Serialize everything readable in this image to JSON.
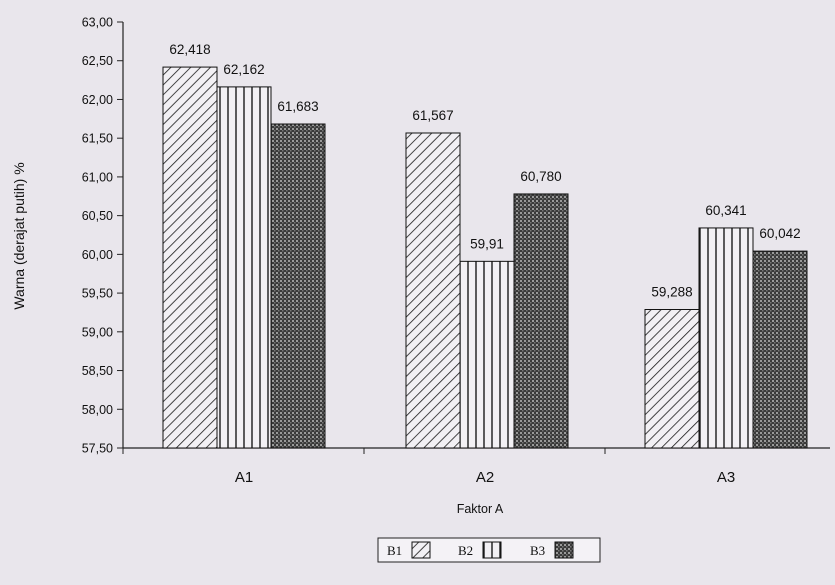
{
  "chart_data": {
    "type": "bar",
    "title": "",
    "xlabel": "Faktor A",
    "ylabel": "Warna (derajat putih) %",
    "ylim": [
      57.5,
      63.0
    ],
    "yticks": [
      "63,00",
      "62,50",
      "62,00",
      "61,50",
      "61,00",
      "60,50",
      "60,00",
      "59,50",
      "59,00",
      "58,50",
      "58,00",
      "57,50"
    ],
    "ytick_values": [
      63.0,
      62.5,
      62.0,
      61.5,
      61.0,
      60.5,
      60.0,
      59.5,
      59.0,
      58.5,
      58.0,
      57.5
    ],
    "categories": [
      "A1",
      "A2",
      "A3"
    ],
    "series": [
      {
        "name": "B1",
        "values": [
          62.418,
          61.567,
          59.288
        ],
        "labels": [
          "62,418",
          "61,567",
          "59,288"
        ],
        "pattern": "diagonal"
      },
      {
        "name": "B2",
        "values": [
          62.162,
          59.91,
          60.341
        ],
        "labels": [
          "62,162",
          "59,91",
          "60,341"
        ],
        "pattern": "vertical"
      },
      {
        "name": "B3",
        "values": [
          61.683,
          60.78,
          60.042
        ],
        "labels": [
          "61,683",
          "60,780",
          "60,042"
        ],
        "pattern": "dense"
      }
    ],
    "grid": false,
    "legend": "bottom"
  }
}
